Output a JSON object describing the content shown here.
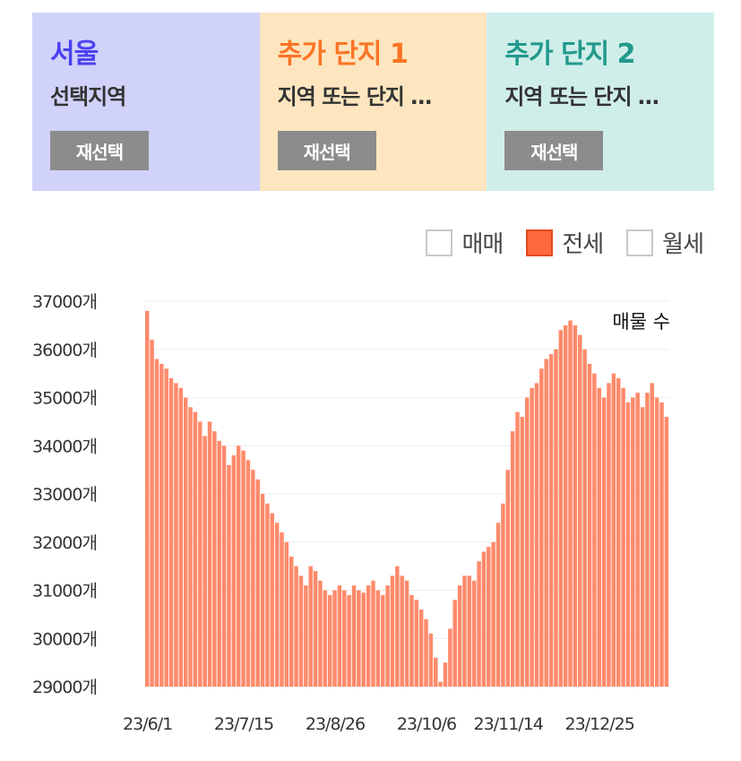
{
  "panels": [
    {
      "title": "서울",
      "subtitle": "선택지역",
      "button": "재선택",
      "bg": "#d1d2fa",
      "title_color": "#4b42f0"
    },
    {
      "title": "추가 단지 1",
      "subtitle": "지역 또는 단지 …",
      "button": "재선택",
      "bg": "#fde6bf",
      "title_color": "#fb7425"
    },
    {
      "title": "추가 단지 2",
      "subtitle": "지역 또는 단지 …",
      "button": "재선택",
      "bg": "#cfeeea",
      "title_color": "#22998c"
    }
  ],
  "legend": [
    {
      "label": "매매",
      "active": false
    },
    {
      "label": "전세",
      "active": true
    },
    {
      "label": "월세",
      "active": false
    }
  ],
  "colors": {
    "bar": "#ff8a6b",
    "grid": "#eeeeee",
    "active_legend": "#ff6a3d"
  },
  "chart_data": {
    "type": "bar",
    "series": [
      {
        "name": "전세",
        "color": "#ff8a6b"
      }
    ],
    "annotation": "매물 수",
    "ylim": [
      29000,
      37000
    ],
    "y_ticks": [
      29000,
      30000,
      31000,
      32000,
      33000,
      34000,
      35000,
      36000,
      37000
    ],
    "y_tick_labels": [
      "29000개",
      "30000개",
      "31000개",
      "32000개",
      "33000개",
      "34000개",
      "35000개",
      "36000개",
      "37000개"
    ],
    "x_tick_labels": [
      "23/6/1",
      "23/7/15",
      "23/8/26",
      "23/10/6",
      "23/11/14",
      "23/12/25"
    ],
    "x_tick_index": [
      0,
      20,
      39,
      58,
      75,
      94
    ],
    "values": [
      36800,
      36200,
      35800,
      35700,
      35600,
      35400,
      35300,
      35200,
      35000,
      34800,
      34700,
      34500,
      34200,
      34500,
      34300,
      34100,
      34000,
      33600,
      33800,
      34000,
      33900,
      33700,
      33500,
      33300,
      33000,
      32800,
      32600,
      32400,
      32200,
      32000,
      31700,
      31500,
      31300,
      31100,
      31500,
      31400,
      31200,
      31000,
      30900,
      31000,
      31100,
      31000,
      30900,
      31100,
      31000,
      30950,
      31100,
      31200,
      31000,
      30900,
      31100,
      31300,
      31500,
      31300,
      31200,
      30900,
      30800,
      30600,
      30400,
      30100,
      29600,
      29100,
      29500,
      30200,
      30800,
      31100,
      31300,
      31300,
      31200,
      31600,
      31800,
      31900,
      32000,
      32400,
      32800,
      33500,
      34300,
      34700,
      34600,
      35000,
      35200,
      35300,
      35600,
      35800,
      35900,
      36000,
      36400,
      36500,
      36600,
      36500,
      36300,
      36000,
      35700,
      35500,
      35200,
      35000,
      35300,
      35500,
      35400,
      35200,
      34900,
      35000,
      35100,
      34800,
      35100,
      35300,
      35000,
      34900,
      34600
    ]
  }
}
